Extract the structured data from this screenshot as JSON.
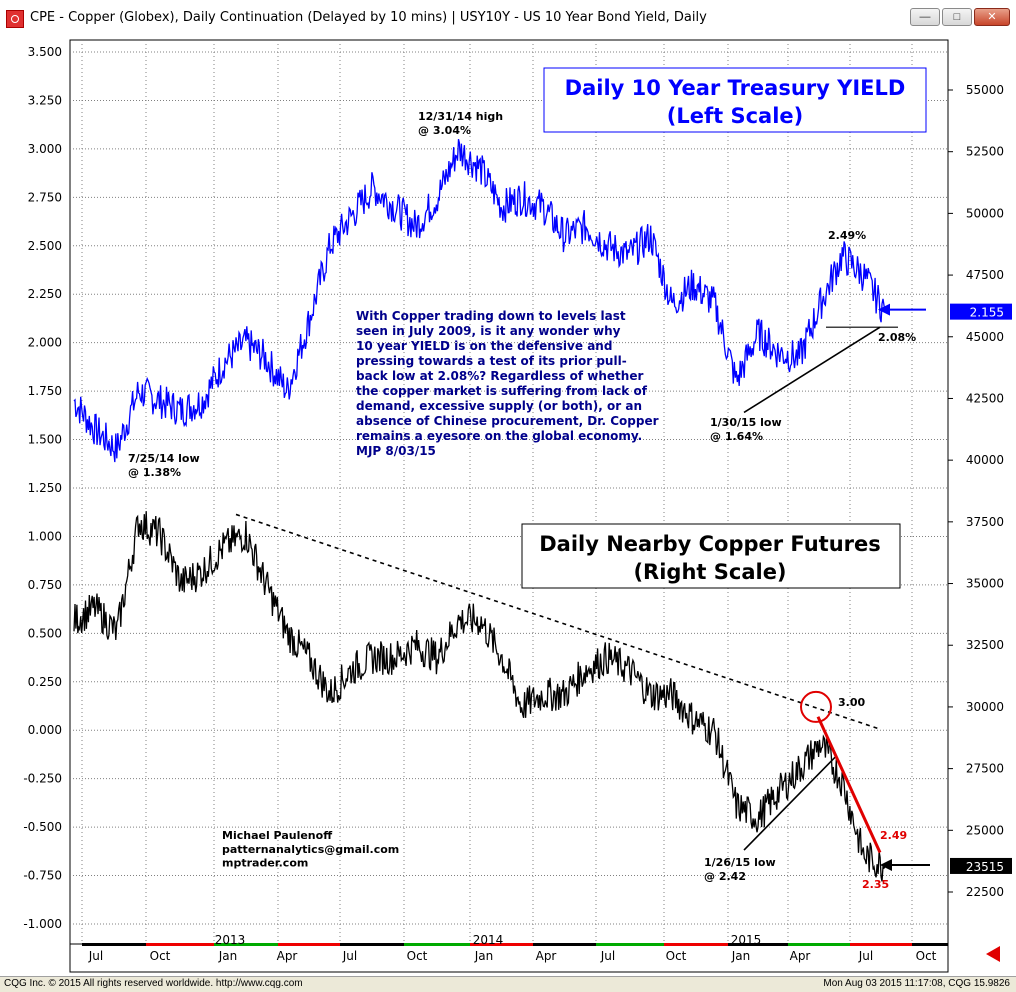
{
  "window": {
    "title": "CPE - Copper (Globex), Daily Continuation (Delayed by 10 mins)   |   USY10Y - US 10 Year Bond Yield, Daily",
    "minimize_icon": "minimize-icon",
    "maximize_icon": "maximize-icon",
    "close_icon": "close-icon"
  },
  "status_bar": {
    "left": "CQG Inc. © 2015 All rights reserved worldwide.  http://www.cqg.com",
    "right": "Mon Aug 03 2015 11:17:08, CQG 15.9826"
  },
  "colors": {
    "yield_line": "#0000ff",
    "copper_line": "#000000",
    "resistance_red": "#e00000",
    "background": "#ffffff",
    "grid": "#808080",
    "price_label_bg": "#0000ff",
    "copper_label_bg": "#000000"
  },
  "chart_data": {
    "type": "line",
    "title": "",
    "xlabel": "",
    "ylabel": "",
    "left_axis": {
      "ticks": [
        "3.500",
        "3.250",
        "3.000",
        "2.750",
        "2.500",
        "2.250",
        "2.000",
        "1.750",
        "1.500",
        "1.250",
        "1.000",
        "0.750",
        "0.500",
        "0.250",
        "0.000",
        "-0.250",
        "-0.500",
        "-0.750",
        "-1.000"
      ],
      "ylim": [
        -1.0,
        3.5
      ]
    },
    "right_axis": {
      "ticks": [
        "55000",
        "52500",
        "50000",
        "47500",
        "45000",
        "42500",
        "40000",
        "37500",
        "35000",
        "32500",
        "30000",
        "27500",
        "25000",
        "22500"
      ],
      "ylim": [
        21000,
        58000
      ]
    },
    "x_axis": {
      "month_labels": [
        "Jul",
        "Oct",
        "Jan",
        "Apr",
        "Jul",
        "Oct",
        "Jan",
        "Apr",
        "Jul",
        "Oct",
        "Jan",
        "Apr",
        "Jul",
        "Oct"
      ],
      "year_labels": [
        "2013",
        "2014",
        "2015"
      ]
    },
    "series": [
      {
        "name": "USY10Y - US 10 Year Bond Yield",
        "axis": "left",
        "x": [
          "2012-06",
          "2012-07",
          "2012-08",
          "2012-09",
          "2012-10",
          "2012-11",
          "2012-12",
          "2013-01",
          "2013-02",
          "2013-03",
          "2013-04",
          "2013-05",
          "2013-06",
          "2013-07",
          "2013-08",
          "2013-09",
          "2013-10",
          "2013-11",
          "2013-12",
          "2014-01",
          "2014-02",
          "2014-03",
          "2014-04",
          "2014-05",
          "2014-06",
          "2014-07",
          "2014-08",
          "2014-09",
          "2014-10",
          "2014-11",
          "2014-12",
          "2015-01",
          "2015-02",
          "2015-03",
          "2015-04",
          "2015-05",
          "2015-06",
          "2015-07",
          "2015-08"
        ],
        "values": [
          1.7,
          1.55,
          1.45,
          1.75,
          1.7,
          1.65,
          1.7,
          1.9,
          2.0,
          1.92,
          1.75,
          2.1,
          2.5,
          2.65,
          2.8,
          2.7,
          2.6,
          2.75,
          3.0,
          2.9,
          2.7,
          2.75,
          2.7,
          2.55,
          2.6,
          2.5,
          2.45,
          2.55,
          2.2,
          2.3,
          2.2,
          1.8,
          2.05,
          1.95,
          1.92,
          2.2,
          2.45,
          2.35,
          2.16
        ]
      },
      {
        "name": "CPE - Copper (Globex), Daily Continuation",
        "axis": "right",
        "x": [
          "2012-06",
          "2012-07",
          "2012-08",
          "2012-09",
          "2012-10",
          "2012-11",
          "2012-12",
          "2013-01",
          "2013-02",
          "2013-03",
          "2013-04",
          "2013-05",
          "2013-06",
          "2013-07",
          "2013-08",
          "2013-09",
          "2013-10",
          "2013-11",
          "2013-12",
          "2014-01",
          "2014-02",
          "2014-03",
          "2014-04",
          "2014-05",
          "2014-06",
          "2014-07",
          "2014-08",
          "2014-09",
          "2014-10",
          "2014-11",
          "2014-12",
          "2015-01",
          "2015-02",
          "2015-03",
          "2015-04",
          "2015-05",
          "2015-06",
          "2015-07",
          "2015-08"
        ],
        "values": [
          33500,
          34000,
          33000,
          37500,
          37000,
          35000,
          35500,
          36500,
          37000,
          35000,
          33000,
          32000,
          30500,
          31500,
          32000,
          32000,
          32500,
          32000,
          33500,
          33500,
          32000,
          30000,
          30500,
          30500,
          31500,
          32000,
          31500,
          30500,
          30500,
          29500,
          29000,
          26000,
          25500,
          26500,
          27500,
          28500,
          27000,
          24000,
          23515
        ]
      }
    ],
    "annotations": {
      "yield_high": "12/31/14 high\n@ 3.04%",
      "yield_low_2012": "7/25/14 low\n@ 1.38%",
      "yield_low_2015": "1/30/15 low\n@ 1.64%",
      "yield_recent_high": "2.49%",
      "yield_support": "2.08%",
      "copper_low": "1/26/15 low\n@ 2.42",
      "copper_level_300": "3.00",
      "copper_level_249": "2.49",
      "copper_level_235": "2.35",
      "yield_last": "2.155",
      "copper_last": "23515"
    },
    "boxes": {
      "yield_box": "Daily 10 Year Treasury YIELD\n(Left Scale)",
      "copper_box": "Daily Nearby Copper Futures\n(Right Scale)"
    },
    "commentary": "With Copper trading down to levels last\nseen in July 2009, is it any wonder why\n10 year YIELD is on the defensive and\npressing towards a test of its prior pull-\nback low at 2.08%? Regardless of whether\nthe copper market is suffering from lack of\ndemand, excessive supply (or both), or an\nabsence of Chinese procurement, Dr. Copper\nremains a eyesore on the global economy.\nMJP 8/03/15",
    "author": "Michael Paulenoff\npatternanalytics@gmail.com\nmptrader.com"
  }
}
